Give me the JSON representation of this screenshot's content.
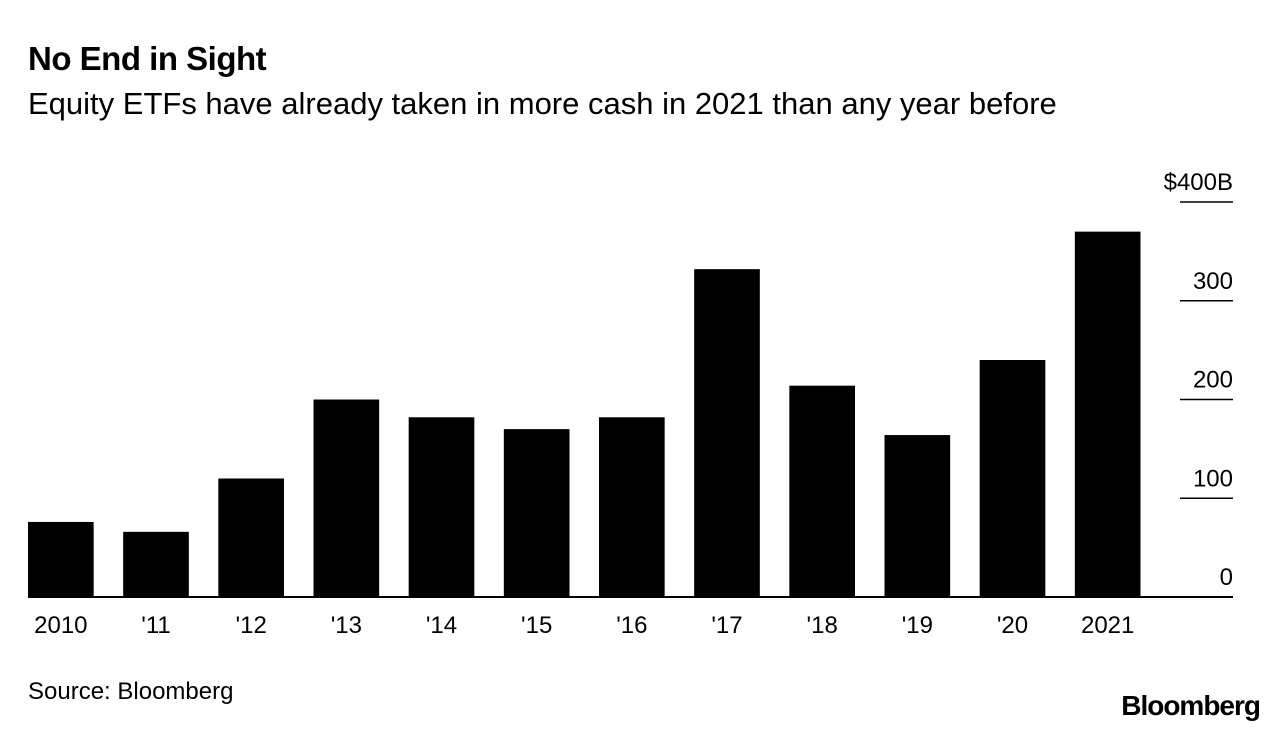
{
  "header": {
    "title": "No End in Sight",
    "subtitle": "Equity ETFs have already taken in more cash in 2021 than any year before"
  },
  "footer": {
    "source": "Source: Bloomberg",
    "logo": "Bloomberg"
  },
  "colors": {
    "bar": "#000000",
    "axis": "#000000",
    "text": "#000000"
  },
  "chart_data": {
    "type": "bar",
    "title": "No End in Sight",
    "subtitle": "Equity ETFs have already taken in more cash in 2021 than any year before",
    "xlabel": "",
    "ylabel": "",
    "categories": [
      "2010",
      "'11",
      "'12",
      "'13",
      "'14",
      "'15",
      "'16",
      "'17",
      "'18",
      "'19",
      "'20",
      "2021"
    ],
    "values": [
      76,
      66,
      120,
      200,
      182,
      170,
      182,
      332,
      214,
      164,
      240,
      370
    ],
    "ylim": [
      0,
      400
    ],
    "yticks": [
      0,
      100,
      200,
      300,
      400
    ],
    "ytick_labels": [
      "0",
      "100",
      "200",
      "300",
      "$400B"
    ],
    "yaxis_position": "right",
    "grid": false,
    "legend": "none"
  }
}
